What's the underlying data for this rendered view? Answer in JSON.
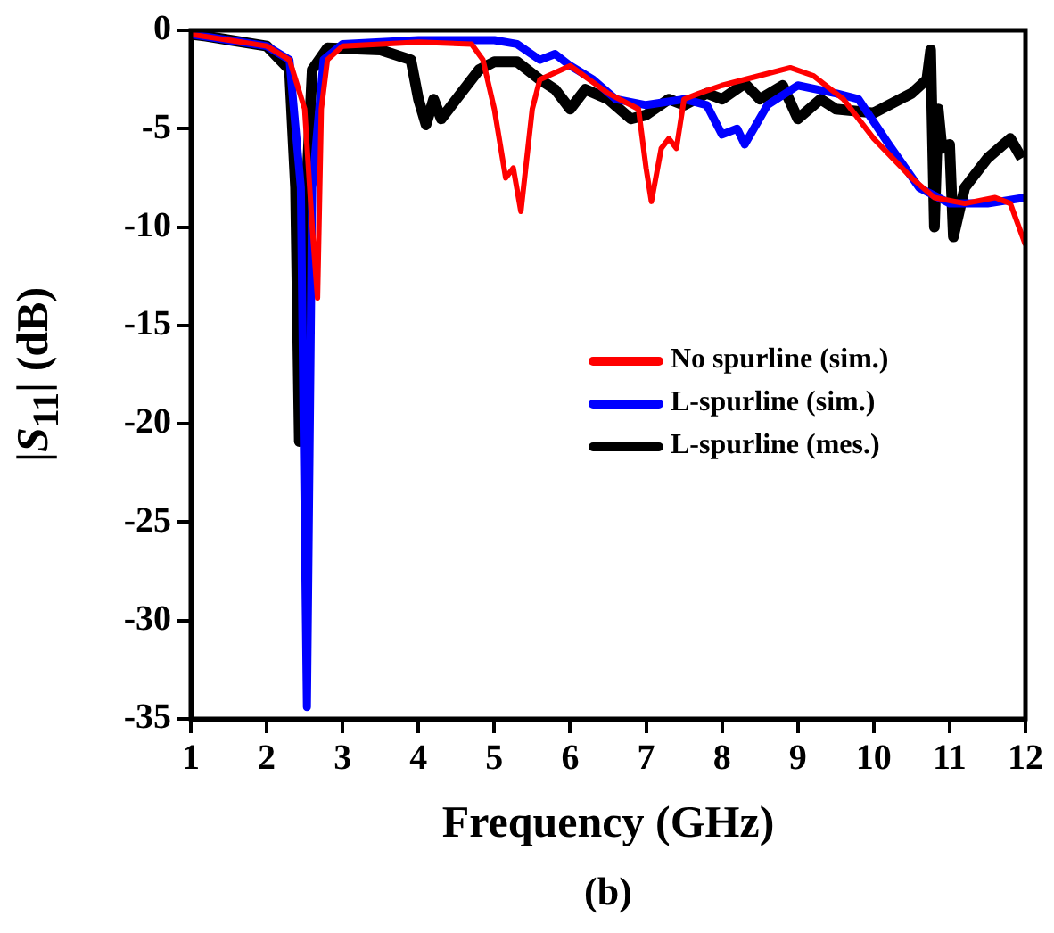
{
  "chart_data": {
    "type": "line",
    "xlabel": "Frequency (GHz)",
    "ylabel": "|S$_{11}$| (dB)",
    "annotations": [
      "(b)"
    ],
    "xlim": [
      1,
      12
    ],
    "xticks": [
      1,
      2,
      3,
      4,
      5,
      6,
      7,
      8,
      9,
      10,
      11,
      12
    ],
    "ylim": [
      -35,
      0
    ],
    "yticks": [
      -35,
      -30,
      -25,
      -20,
      -15,
      -10,
      -5,
      0
    ],
    "legend": "right",
    "marker": "none",
    "line_style": "solid",
    "series": [
      {
        "name": "No spurline (sim.)",
        "color": "#ff0000",
        "x": [
          1,
          1.5,
          2,
          2.3,
          2.5,
          2.6,
          2.67,
          2.72,
          2.8,
          3,
          4,
          4.7,
          4.85,
          5,
          5.15,
          5.25,
          5.35,
          5.5,
          5.6,
          6,
          6.5,
          6.9,
          7,
          7.07,
          7.2,
          7.3,
          7.4,
          7.5,
          7.7,
          8,
          8.5,
          8.9,
          9.2,
          9.6,
          10,
          10.5,
          10.8,
          11.2,
          11.6,
          11.8,
          12
        ],
        "values": [
          -0.2,
          -0.5,
          -0.8,
          -1.5,
          -4,
          -10,
          -13.6,
          -4,
          -1.5,
          -0.8,
          -0.6,
          -0.7,
          -1.5,
          -4,
          -7.5,
          -7,
          -9.2,
          -4,
          -2.5,
          -1.8,
          -3.2,
          -4,
          -7,
          -8.7,
          -6,
          -5.5,
          -6,
          -3.5,
          -3.2,
          -2.8,
          -2.3,
          -1.9,
          -2.3,
          -3.5,
          -5.5,
          -7.5,
          -8.5,
          -8.8,
          -8.5,
          -8.8,
          -10.9
        ]
      },
      {
        "name": "L-spurline (sim.)",
        "color": "#0000ff",
        "x": [
          1,
          2,
          2.3,
          2.45,
          2.53,
          2.6,
          2.75,
          3,
          4,
          5,
          5.3,
          5.6,
          5.8,
          6,
          6.3,
          6.6,
          7,
          7.5,
          7.8,
          8,
          8.2,
          8.3,
          8.6,
          9,
          9.5,
          9.8,
          10.2,
          10.6,
          11,
          11.5,
          12
        ],
        "values": [
          -0.2,
          -0.8,
          -1.5,
          -8,
          -34.4,
          -8,
          -1.5,
          -0.7,
          -0.5,
          -0.5,
          -0.7,
          -1.5,
          -1.2,
          -1.8,
          -2.5,
          -3.5,
          -3.8,
          -3.5,
          -3.8,
          -5.3,
          -5,
          -5.8,
          -3.8,
          -2.8,
          -3.2,
          -3.5,
          -5.8,
          -8,
          -8.8,
          -8.8,
          -8.5
        ]
      },
      {
        "name": "L-spurline (mes.)",
        "color": "#000000",
        "x": [
          1,
          1.2,
          2,
          2.3,
          2.38,
          2.43,
          2.5,
          2.6,
          2.8,
          3.5,
          3.9,
          4,
          4.1,
          4.2,
          4.3,
          4.5,
          4.8,
          5,
          5.3,
          5.6,
          5.8,
          6,
          6.2,
          6.5,
          6.8,
          7,
          7.3,
          7.5,
          7.8,
          8,
          8.3,
          8.5,
          8.8,
          9,
          9.3,
          9.5,
          10,
          10.5,
          10.7,
          10.75,
          10.8,
          10.85,
          10.9,
          11,
          11.05,
          11.2,
          11.5,
          11.8,
          11.95
        ],
        "values": [
          -0.2,
          -0.3,
          -0.8,
          -2,
          -8,
          -20.9,
          -10,
          -2,
          -0.9,
          -1,
          -1.5,
          -3.5,
          -4.8,
          -3.5,
          -4.5,
          -3.5,
          -2,
          -1.6,
          -1.6,
          -2.5,
          -3,
          -4,
          -3,
          -3.5,
          -4.5,
          -4.3,
          -3.5,
          -3.8,
          -3.2,
          -3.5,
          -2.7,
          -3.5,
          -2.8,
          -4.5,
          -3.5,
          -4,
          -4.2,
          -3.2,
          -2.5,
          -1,
          -10,
          -4,
          -6,
          -5.8,
          -10.5,
          -8,
          -6.5,
          -5.5,
          -6.5
        ]
      }
    ]
  }
}
